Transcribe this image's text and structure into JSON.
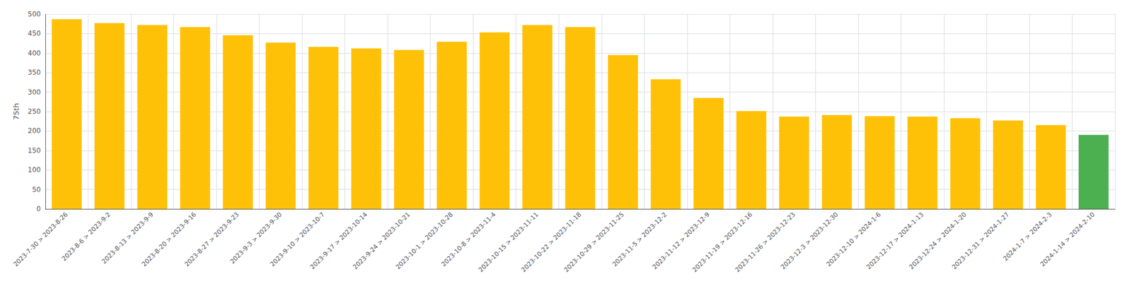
{
  "chart_data": {
    "type": "bar",
    "categories": [
      "2023-7-30 > 2023-8-26",
      "2023-8-6 > 2023-9-2",
      "2023-8-13 > 2023-9-9",
      "2023-8-20 > 2023-9-16",
      "2023-8-27 > 2023-9-23",
      "2023-9-3 > 2023-9-30",
      "2023-9-10 > 2023-10-7",
      "2023-9-17 > 2023-10-14",
      "2023-9-24 > 2023-10-21",
      "2023-10-1 > 2023-10-28",
      "2023-10-8 > 2023-11-4",
      "2023-10-15 > 2023-11-11",
      "2023-10-22 > 2023-11-18",
      "2023-10-29 > 2023-11-25",
      "2023-11-5 > 2023-12-2",
      "2023-11-12 > 2023-12-9",
      "2023-11-19 > 2023-12-16",
      "2023-11-26 > 2023-12-23",
      "2023-12-3 > 2023-12-30",
      "2023-12-10 > 2024-1-6",
      "2023-12-17 > 2024-1-13",
      "2023-12-24 > 2024-1-20",
      "2023-12-31 > 2024-1-27",
      "2024-1-7 > 2024-2-3",
      "2024-1-14 > 2024-2-10"
    ],
    "values": [
      487,
      477,
      472,
      467,
      446,
      427,
      416,
      412,
      408,
      429,
      453,
      472,
      467,
      395,
      333,
      285,
      251,
      237,
      241,
      238,
      237,
      233,
      227,
      215,
      190
    ],
    "colors": [
      "#FFC107",
      "#FFC107",
      "#FFC107",
      "#FFC107",
      "#FFC107",
      "#FFC107",
      "#FFC107",
      "#FFC107",
      "#FFC107",
      "#FFC107",
      "#FFC107",
      "#FFC107",
      "#FFC107",
      "#FFC107",
      "#FFC107",
      "#FFC107",
      "#FFC107",
      "#FFC107",
      "#FFC107",
      "#FFC107",
      "#FFC107",
      "#FFC107",
      "#FFC107",
      "#FFC107",
      "#4CAF50"
    ],
    "ylabel": "75th",
    "ylim": [
      0,
      500
    ],
    "yticks": [
      0,
      50,
      100,
      150,
      200,
      250,
      300,
      350,
      400,
      450,
      500
    ],
    "grid": true
  }
}
